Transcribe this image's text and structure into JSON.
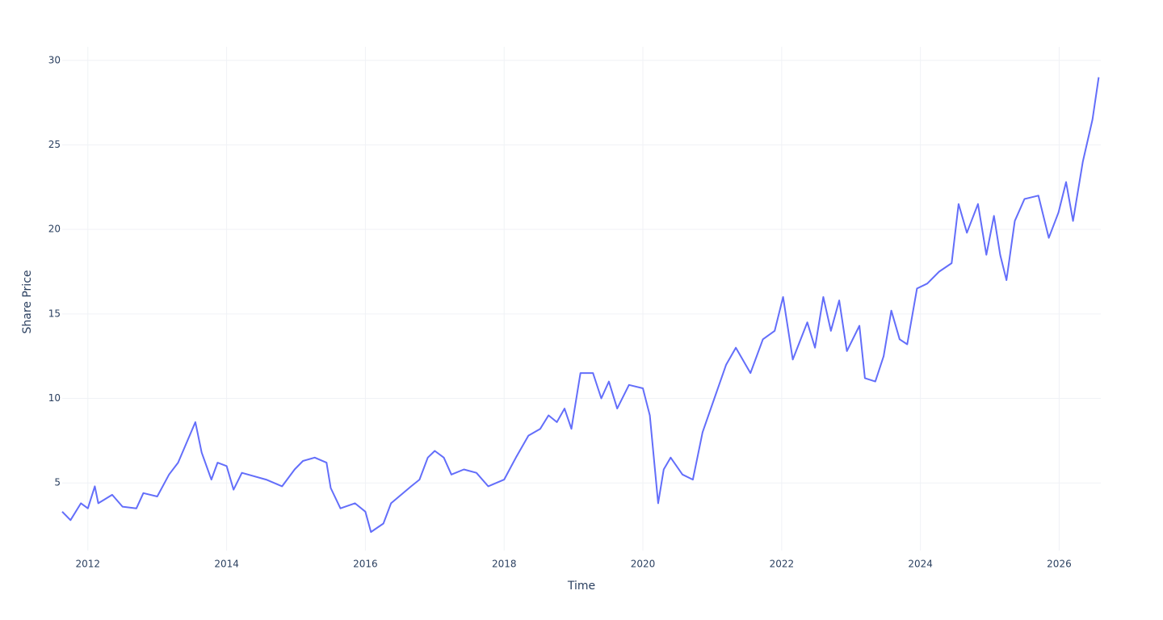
{
  "chart_data": {
    "type": "line",
    "x_label": "Time",
    "y_label": "Share Price",
    "x": [
      2011.63,
      2011.75,
      2011.9,
      2012.0,
      2012.1,
      2012.15,
      2012.35,
      2012.5,
      2012.7,
      2012.8,
      2013.0,
      2013.17,
      2013.3,
      2013.55,
      2013.64,
      2013.78,
      2013.87,
      2014.0,
      2014.1,
      2014.22,
      2014.57,
      2014.8,
      2014.98,
      2015.1,
      2015.27,
      2015.44,
      2015.5,
      2015.64,
      2015.85,
      2016.0,
      2016.08,
      2016.26,
      2016.37,
      2016.66,
      2016.78,
      2016.9,
      2017.0,
      2017.13,
      2017.24,
      2017.42,
      2017.6,
      2017.77,
      2018.0,
      2018.17,
      2018.35,
      2018.52,
      2018.64,
      2018.76,
      2018.87,
      2018.97,
      2019.1,
      2019.28,
      2019.4,
      2019.51,
      2019.63,
      2019.8,
      2020.0,
      2020.1,
      2020.22,
      2020.3,
      2020.4,
      2020.57,
      2020.72,
      2020.86,
      2021.03,
      2021.2,
      2021.34,
      2021.55,
      2021.73,
      2021.9,
      2022.02,
      2022.16,
      2022.37,
      2022.48,
      2022.6,
      2022.71,
      2022.83,
      2022.94,
      2023.12,
      2023.2,
      2023.35,
      2023.47,
      2023.58,
      2023.7,
      2023.81,
      2023.95,
      2024.1,
      2024.27,
      2024.45,
      2024.55,
      2024.67,
      2024.83,
      2024.95,
      2025.06,
      2025.15,
      2025.24,
      2025.36,
      2025.5,
      2025.7,
      2025.85,
      2025.99,
      2026.1,
      2026.2,
      2026.34,
      2026.48,
      2026.57
    ],
    "series": [
      {
        "color": "#636efa",
        "values": [
          3.3,
          2.8,
          3.8,
          3.5,
          4.8,
          3.8,
          4.3,
          3.6,
          3.5,
          4.4,
          4.2,
          5.5,
          6.2,
          8.6,
          6.8,
          5.2,
          6.2,
          6.0,
          4.6,
          5.6,
          5.2,
          4.8,
          5.8,
          6.3,
          6.5,
          6.2,
          4.7,
          3.5,
          3.8,
          3.3,
          2.1,
          2.6,
          3.8,
          4.8,
          5.2,
          6.5,
          6.9,
          6.5,
          5.5,
          5.8,
          5.6,
          4.8,
          5.2,
          6.5,
          7.8,
          8.2,
          9.0,
          8.6,
          9.4,
          8.2,
          11.5,
          11.5,
          10.0,
          11.0,
          9.4,
          10.8,
          10.6,
          9.0,
          3.8,
          5.8,
          6.5,
          5.5,
          5.2,
          8.0,
          10.0,
          12.0,
          13.0,
          11.5,
          13.5,
          14.0,
          16.0,
          12.3,
          14.5,
          13.0,
          16.0,
          14.0,
          15.8,
          12.8,
          14.3,
          11.2,
          11.0,
          12.5,
          15.2,
          13.5,
          13.2,
          16.5,
          16.8,
          17.5,
          18.0,
          21.5,
          19.8,
          21.5,
          18.5,
          20.8,
          18.5,
          17.0,
          20.5,
          21.8,
          22.0,
          19.5,
          21.0,
          22.8,
          20.5,
          24.0,
          26.5,
          29.0
        ]
      }
    ],
    "xlim": [
      2011.63,
      2026.6
    ],
    "ylim": [
      1.0,
      30.8
    ],
    "xticks": [
      2012,
      2014,
      2016,
      2018,
      2020,
      2022,
      2024,
      2026
    ],
    "yticks": [
      5,
      10,
      15,
      20,
      25,
      30
    ],
    "grid": true
  }
}
